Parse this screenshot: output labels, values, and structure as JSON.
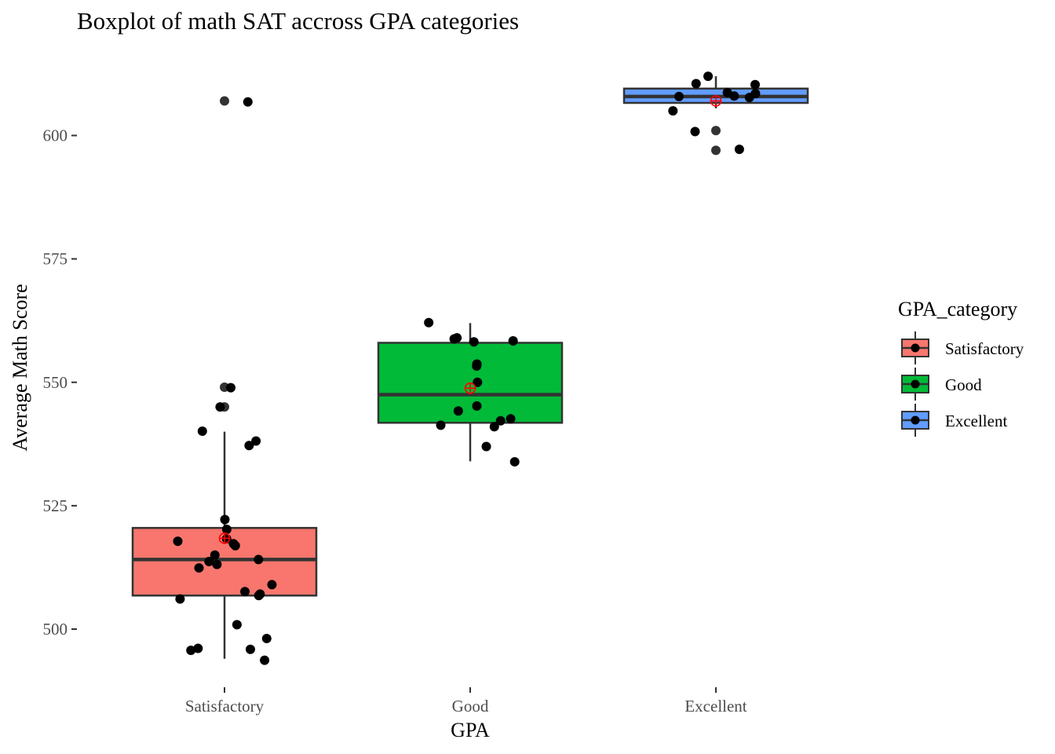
{
  "chart_data": {
    "type": "boxplot",
    "title": "Boxplot of math SAT accross GPA categories",
    "xlabel": "GPA",
    "ylabel": "Average Math Score",
    "ylim": [
      488,
      617
    ],
    "yticks": [
      500,
      525,
      550,
      575,
      600
    ],
    "categories": [
      "Satisfactory",
      "Good",
      "Excellent"
    ],
    "grid": false,
    "legend": {
      "title": "GPA_category",
      "placement": "right",
      "entries": [
        "Satisfactory",
        "Good",
        "Excellent"
      ]
    },
    "colors": {
      "Satisfactory": "#F8766D",
      "Good": "#00BA38",
      "Excellent": "#619CFF",
      "mean_marker": "#FF0000",
      "box_outline": "#333333"
    },
    "boxes": [
      {
        "category": "Satisfactory",
        "whisker_low": 494.0,
        "q1": 506.8,
        "median": 514.1,
        "q3": 520.5,
        "whisker_high": 540.0,
        "mean": 518.4,
        "outliers": [
          607.0,
          549.0,
          545.0
        ],
        "points": [
          606.8,
          548.9,
          545.0,
          540.1,
          538.1,
          537.2,
          522.2,
          520.2,
          518.3,
          517.8,
          517.3,
          516.9,
          515.0,
          514.1,
          513.7,
          513.1,
          512.4,
          509.0,
          507.6,
          507.1,
          506.8,
          506.1,
          500.9,
          498.1,
          496.1,
          495.9,
          495.7,
          493.7
        ]
      },
      {
        "category": "Good",
        "whisker_low": 534.0,
        "q1": 541.8,
        "median": 547.5,
        "q3": 558.0,
        "whisker_high": 562.0,
        "mean": 548.8,
        "outliers": [],
        "points": [
          562.1,
          559.0,
          558.8,
          558.4,
          558.2,
          553.7,
          553.3,
          550.0,
          545.2,
          544.2,
          542.6,
          542.2,
          541.3,
          541.0,
          537.0,
          533.9
        ]
      },
      {
        "category": "Excellent",
        "whisker_low": 605.5,
        "q1": 606.6,
        "median": 607.9,
        "q3": 609.5,
        "whisker_high": 612.0,
        "mean": 607.0,
        "outliers": [
          601.0,
          597.0
        ],
        "points": [
          612.0,
          610.5,
          610.3,
          608.7,
          608.5,
          608.0,
          607.9,
          607.7,
          605.0,
          600.8,
          597.2
        ]
      }
    ]
  }
}
